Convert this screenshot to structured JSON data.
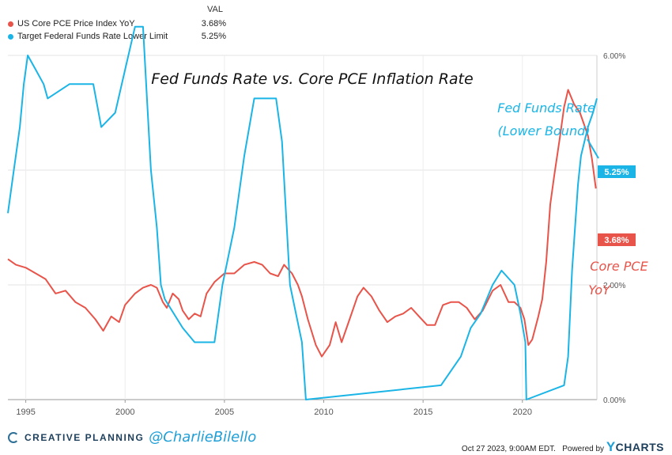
{
  "legend": {
    "header": "VAL",
    "items": [
      {
        "label": "US Core PCE Price Index YoY",
        "value": "3.68%",
        "color": "#e8544a"
      },
      {
        "label": "Target Federal Funds Rate Lower Limit",
        "value": "5.25%",
        "color": "#1ab5e6"
      }
    ]
  },
  "annotations": {
    "title": "Fed Funds Rate vs. Core PCE Inflation Rate",
    "fed_line1": "Fed Funds Rate",
    "fed_line2": "(Lower Bound)",
    "pce_line1": "Core PCE",
    "pce_line2": "YoY"
  },
  "end_labels": {
    "fed": "5.25%",
    "pce": "3.68%"
  },
  "footer": {
    "brand": "CREATIVE PLANNING",
    "handle": "@CharlieBilello",
    "timestamp": "Oct 27 2023, 9:00AM EDT.",
    "powered": "Powered by",
    "ycharts_y": "Y",
    "ycharts_rest": "CHARTS"
  },
  "chart_data": {
    "type": "line",
    "xlabel": "",
    "ylabel": "",
    "ylim": [
      0,
      6.0
    ],
    "xlim": [
      1994.1,
      2023.75
    ],
    "grid": true,
    "y_axis_side": "right",
    "y_ticks": [
      "0.00%",
      "2.00%",
      "4.00%",
      "6.00%"
    ],
    "x_ticks": [
      "1995",
      "2000",
      "2005",
      "2010",
      "2015",
      "2020"
    ],
    "x_tick_values": [
      1995,
      2000,
      2005,
      2010,
      2015,
      2020
    ],
    "series": [
      {
        "name": "US Core PCE Price Index YoY",
        "color": "#e8544a",
        "x": [
          1994.1,
          1994.5,
          1995,
          1995.5,
          1996,
          1996.5,
          1997,
          1997.5,
          1998,
          1998.5,
          1998.9,
          1999.3,
          1999.7,
          2000,
          2000.5,
          2000.9,
          2001.3,
          2001.6,
          2001.9,
          2002.1,
          2002.4,
          2002.7,
          2002.9,
          2003.2,
          2003.5,
          2003.8,
          2004.1,
          2004.5,
          2005,
          2005.5,
          2006,
          2006.5,
          2006.9,
          2007.3,
          2007.7,
          2008,
          2008.4,
          2008.7,
          2008.9,
          2009.2,
          2009.6,
          2009.9,
          2010.3,
          2010.6,
          2010.9,
          2011.3,
          2011.7,
          2012,
          2012.4,
          2012.8,
          2013.2,
          2013.6,
          2014,
          2014.4,
          2014.8,
          2015.2,
          2015.6,
          2016,
          2016.4,
          2016.8,
          2017.2,
          2017.6,
          2018,
          2018.5,
          2018.9,
          2019.3,
          2019.6,
          2019.9,
          2020.1,
          2020.3,
          2020.5,
          2020.8,
          2021,
          2021.2,
          2021.4,
          2021.6,
          2021.9,
          2022.1,
          2022.3,
          2022.6,
          2022.9,
          2023.1,
          2023.3,
          2023.5,
          2023.7
        ],
        "values": [
          2.45,
          2.35,
          2.3,
          2.2,
          2.1,
          1.85,
          1.9,
          1.7,
          1.6,
          1.4,
          1.2,
          1.45,
          1.35,
          1.65,
          1.85,
          1.95,
          2.0,
          1.95,
          1.7,
          1.6,
          1.85,
          1.75,
          1.55,
          1.4,
          1.5,
          1.45,
          1.85,
          2.05,
          2.2,
          2.2,
          2.35,
          2.4,
          2.35,
          2.2,
          2.15,
          2.35,
          2.2,
          2.0,
          1.8,
          1.4,
          0.95,
          0.75,
          0.95,
          1.35,
          1.0,
          1.4,
          1.8,
          1.95,
          1.8,
          1.55,
          1.35,
          1.45,
          1.5,
          1.6,
          1.45,
          1.3,
          1.3,
          1.65,
          1.7,
          1.7,
          1.6,
          1.4,
          1.55,
          1.9,
          2.0,
          1.7,
          1.7,
          1.6,
          1.4,
          0.95,
          1.05,
          1.45,
          1.75,
          2.4,
          3.4,
          3.9,
          4.6,
          5.1,
          5.4,
          5.15,
          5.0,
          4.8,
          4.6,
          4.2,
          3.68
        ]
      },
      {
        "name": "Target Federal Funds Rate Lower Limit",
        "color": "#1ab5e6",
        "x": [
          1994.1,
          1994.4,
          1994.7,
          1994.9,
          1995.1,
          1995.5,
          1995.9,
          1996.1,
          1997.2,
          1998.4,
          1998.8,
          1999.5,
          2000.0,
          2000.5,
          2000.9,
          2001.3,
          2001.6,
          2001.8,
          2002.0,
          2002.9,
          2003.5,
          2004.5,
          2004.9,
          2005.5,
          2006.0,
          2006.5,
          2007.6,
          2007.9,
          2008.3,
          2008.9,
          2009.1,
          2015.9,
          2016.9,
          2017.4,
          2017.9,
          2018.5,
          2018.95,
          2019.6,
          2019.9,
          2020.15,
          2020.2,
          2022.1,
          2022.3,
          2022.5,
          2022.8,
          2022.95,
          2023.3,
          2023.55,
          2023.75
        ],
        "values": [
          3.25,
          4.0,
          4.75,
          5.5,
          6.0,
          5.75,
          5.5,
          5.25,
          5.5,
          5.5,
          4.75,
          5.0,
          5.75,
          6.5,
          6.5,
          4.0,
          3.0,
          2.0,
          1.75,
          1.25,
          1.0,
          1.0,
          2.0,
          3.0,
          4.25,
          5.25,
          5.25,
          4.5,
          2.0,
          1.0,
          0.0,
          0.25,
          0.75,
          1.25,
          1.5,
          2.0,
          2.25,
          2.0,
          1.5,
          1.0,
          0.0,
          0.25,
          0.75,
          2.25,
          3.75,
          4.25,
          4.75,
          5.0,
          5.25
        ]
      }
    ]
  }
}
